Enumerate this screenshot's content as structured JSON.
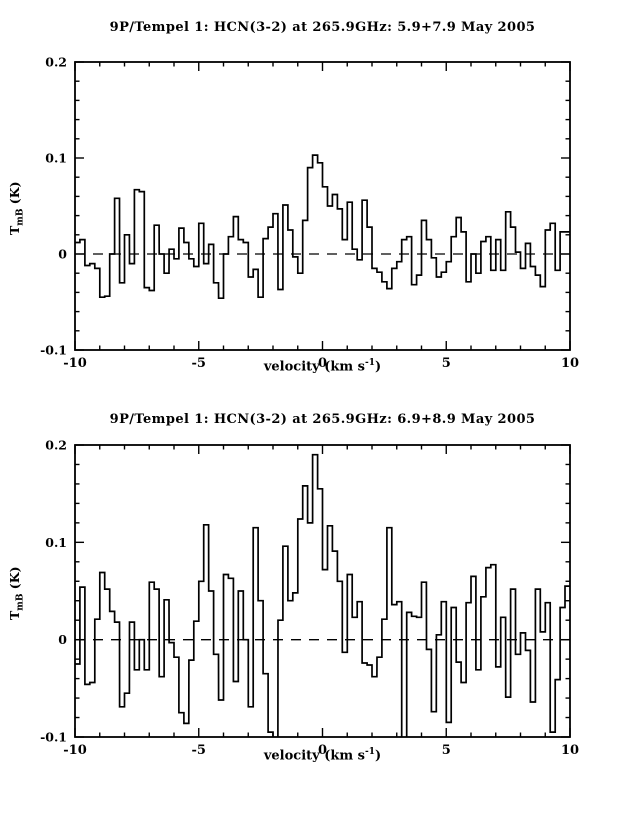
{
  "page": {
    "background": "#ffffff",
    "line_color": "#000000"
  },
  "chart_data": [
    {
      "type": "line",
      "subtype": "histogram-step-spectrum",
      "title": "9P/Tempel 1: HCN(3-2) at 265.9GHz: 5.9+7.9 May 2005",
      "xlabel_parts": {
        "pre": "velocity (km s",
        "sup": "-1",
        "post": ")"
      },
      "ylabel_parts": {
        "main": "T",
        "sub": "mB",
        "unit": "(K)"
      },
      "xlim": [
        -10,
        10
      ],
      "ylim": [
        -0.1,
        0.2
      ],
      "xticks_major": [
        -10,
        -5,
        0,
        5,
        10
      ],
      "xtick_labels": [
        "-10",
        "-5",
        "0",
        "5",
        "10"
      ],
      "xtick_minor_step": 1,
      "yticks_major": [
        -0.1,
        0,
        0.1,
        0.2
      ],
      "ytick_labels": [
        "-0.1",
        "0",
        "0.1",
        "0.2"
      ],
      "ytick_minor_step": 0.02,
      "zero_line": "dashed",
      "grid": false,
      "channel_width": 0.2,
      "x_start": -9.9,
      "values": [
        0.012,
        0.015,
        -0.012,
        -0.01,
        -0.015,
        -0.045,
        -0.044,
        0.0,
        0.058,
        -0.03,
        0.02,
        -0.01,
        0.067,
        0.065,
        -0.035,
        -0.038,
        0.03,
        0.0,
        -0.02,
        0.005,
        -0.005,
        0.027,
        0.012,
        -0.005,
        -0.013,
        0.032,
        -0.01,
        0.01,
        -0.03,
        -0.046,
        0.0,
        0.018,
        0.039,
        0.015,
        0.012,
        -0.024,
        -0.016,
        -0.045,
        0.016,
        0.028,
        0.042,
        -0.037,
        0.051,
        0.025,
        -0.003,
        -0.02,
        0.035,
        0.09,
        0.103,
        0.095,
        0.07,
        0.05,
        0.062,
        0.047,
        0.015,
        0.054,
        0.005,
        -0.006,
        0.056,
        0.028,
        -0.015,
        -0.019,
        -0.029,
        -0.036,
        -0.015,
        -0.008,
        0.015,
        0.018,
        -0.032,
        -0.022,
        0.035,
        0.015,
        -0.004,
        -0.024,
        -0.019,
        -0.008,
        0.018,
        0.038,
        0.023,
        -0.029,
        0.0,
        -0.02,
        0.013,
        0.018,
        -0.017,
        0.015,
        -0.017,
        0.044,
        0.028,
        0.002,
        -0.015,
        0.011,
        -0.013,
        -0.022,
        -0.034,
        0.025,
        0.032,
        -0.017,
        0.023,
        0.023
      ]
    },
    {
      "type": "line",
      "subtype": "histogram-step-spectrum",
      "title": "9P/Tempel 1: HCN(3-2) at 265.9GHz: 6.9+8.9 May 2005",
      "xlabel_parts": {
        "pre": "velocity (km s",
        "sup": "-1",
        "post": ")"
      },
      "ylabel_parts": {
        "main": "T",
        "sub": "mB",
        "unit": "(K)"
      },
      "xlim": [
        -10,
        10
      ],
      "ylim": [
        -0.1,
        0.2
      ],
      "xticks_major": [
        -10,
        -5,
        0,
        5,
        10
      ],
      "xtick_labels": [
        "-10",
        "-5",
        "0",
        "5",
        "10"
      ],
      "xtick_minor_step": 1,
      "yticks_major": [
        -0.1,
        0,
        0.1,
        0.2
      ],
      "ytick_labels": [
        "-0.1",
        "0",
        "0.1",
        "0.2"
      ],
      "ytick_minor_step": 0.02,
      "zero_line": "dashed",
      "grid": false,
      "channel_width": 0.2,
      "x_start": -9.9,
      "values": [
        -0.025,
        0.054,
        -0.046,
        -0.044,
        0.021,
        0.069,
        0.052,
        0.029,
        0.018,
        -0.069,
        -0.055,
        0.018,
        -0.031,
        0.0,
        -0.031,
        0.059,
        0.052,
        -0.038,
        0.041,
        -0.003,
        -0.018,
        -0.075,
        -0.086,
        -0.021,
        0.019,
        0.06,
        0.118,
        0.05,
        -0.015,
        -0.062,
        0.067,
        0.063,
        -0.043,
        0.05,
        0.0,
        -0.069,
        0.115,
        0.04,
        -0.035,
        -0.095,
        -0.103,
        0.02,
        0.096,
        0.04,
        0.048,
        0.124,
        0.158,
        0.12,
        0.19,
        0.155,
        0.072,
        0.117,
        0.091,
        0.06,
        -0.013,
        0.067,
        0.023,
        0.039,
        -0.024,
        -0.026,
        -0.038,
        -0.018,
        0.021,
        0.115,
        0.036,
        0.039,
        -0.105,
        0.028,
        0.024,
        0.023,
        0.059,
        -0.01,
        -0.074,
        0.005,
        0.039,
        -0.085,
        0.033,
        -0.023,
        -0.044,
        0.038,
        0.065,
        -0.031,
        0.044,
        0.074,
        0.077,
        -0.028,
        0.023,
        -0.059,
        0.052,
        -0.015,
        0.007,
        -0.011,
        -0.064,
        0.052,
        0.008,
        0.038,
        -0.095,
        -0.041,
        0.033,
        0.055
      ]
    }
  ]
}
